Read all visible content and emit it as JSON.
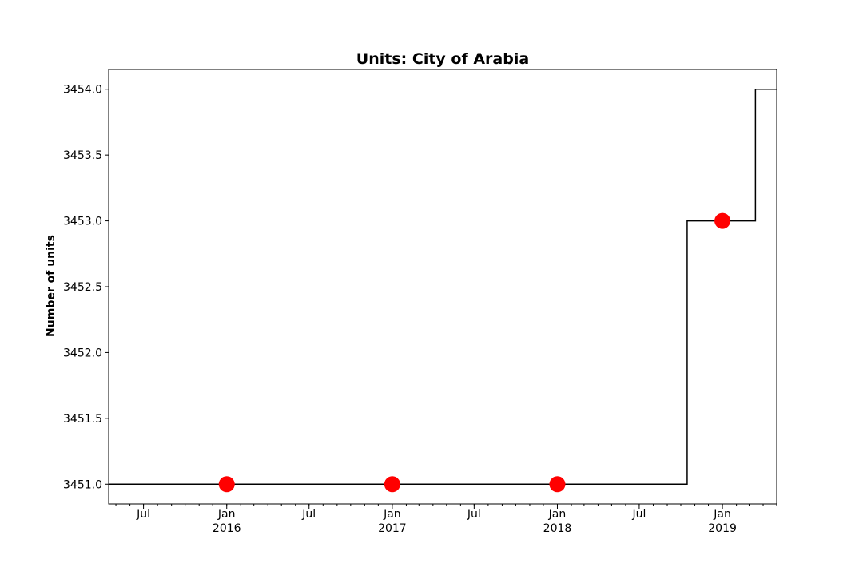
{
  "chart_data": {
    "type": "line",
    "title": "Units: City of Arabia",
    "xlabel": "",
    "ylabel": "Number of units",
    "ylim": [
      3450.85,
      3454.15
    ],
    "xlim": [
      "2015-04-15",
      "2019-05-01"
    ],
    "grid": false,
    "legend": "none",
    "line_color": "#000000",
    "marker_color": "#ff0000",
    "y_ticks": [
      "3451.0",
      "3451.5",
      "3452.0",
      "3452.5",
      "3453.0",
      "3453.5",
      "3454.0"
    ],
    "y_tick_values": [
      3451.0,
      3451.5,
      3452.0,
      3452.5,
      3453.0,
      3453.5,
      3454.0
    ],
    "x_ticks": [
      {
        "date": "2015-07-01",
        "line1": "Jul",
        "line2": ""
      },
      {
        "date": "2016-01-01",
        "line1": "Jan",
        "line2": "2016"
      },
      {
        "date": "2016-07-01",
        "line1": "Jul",
        "line2": ""
      },
      {
        "date": "2017-01-01",
        "line1": "Jan",
        "line2": "2017"
      },
      {
        "date": "2017-07-01",
        "line1": "Jul",
        "line2": ""
      },
      {
        "date": "2018-01-01",
        "line1": "Jan",
        "line2": "2018"
      },
      {
        "date": "2018-07-01",
        "line1": "Jul",
        "line2": ""
      },
      {
        "date": "2019-01-01",
        "line1": "Jan",
        "line2": "2019"
      }
    ],
    "series": [
      {
        "style": "step",
        "x": [
          "2015-04-15",
          "2018-10-15",
          "2019-03-15",
          "2019-05-01"
        ],
        "values": [
          3451.0,
          3453.0,
          3454.0,
          3454.0
        ]
      },
      {
        "style": "marker",
        "x": [
          "2016-01-01",
          "2017-01-01",
          "2018-01-01",
          "2019-01-01"
        ],
        "values": [
          3451.0,
          3451.0,
          3451.0,
          3453.0
        ]
      }
    ]
  }
}
